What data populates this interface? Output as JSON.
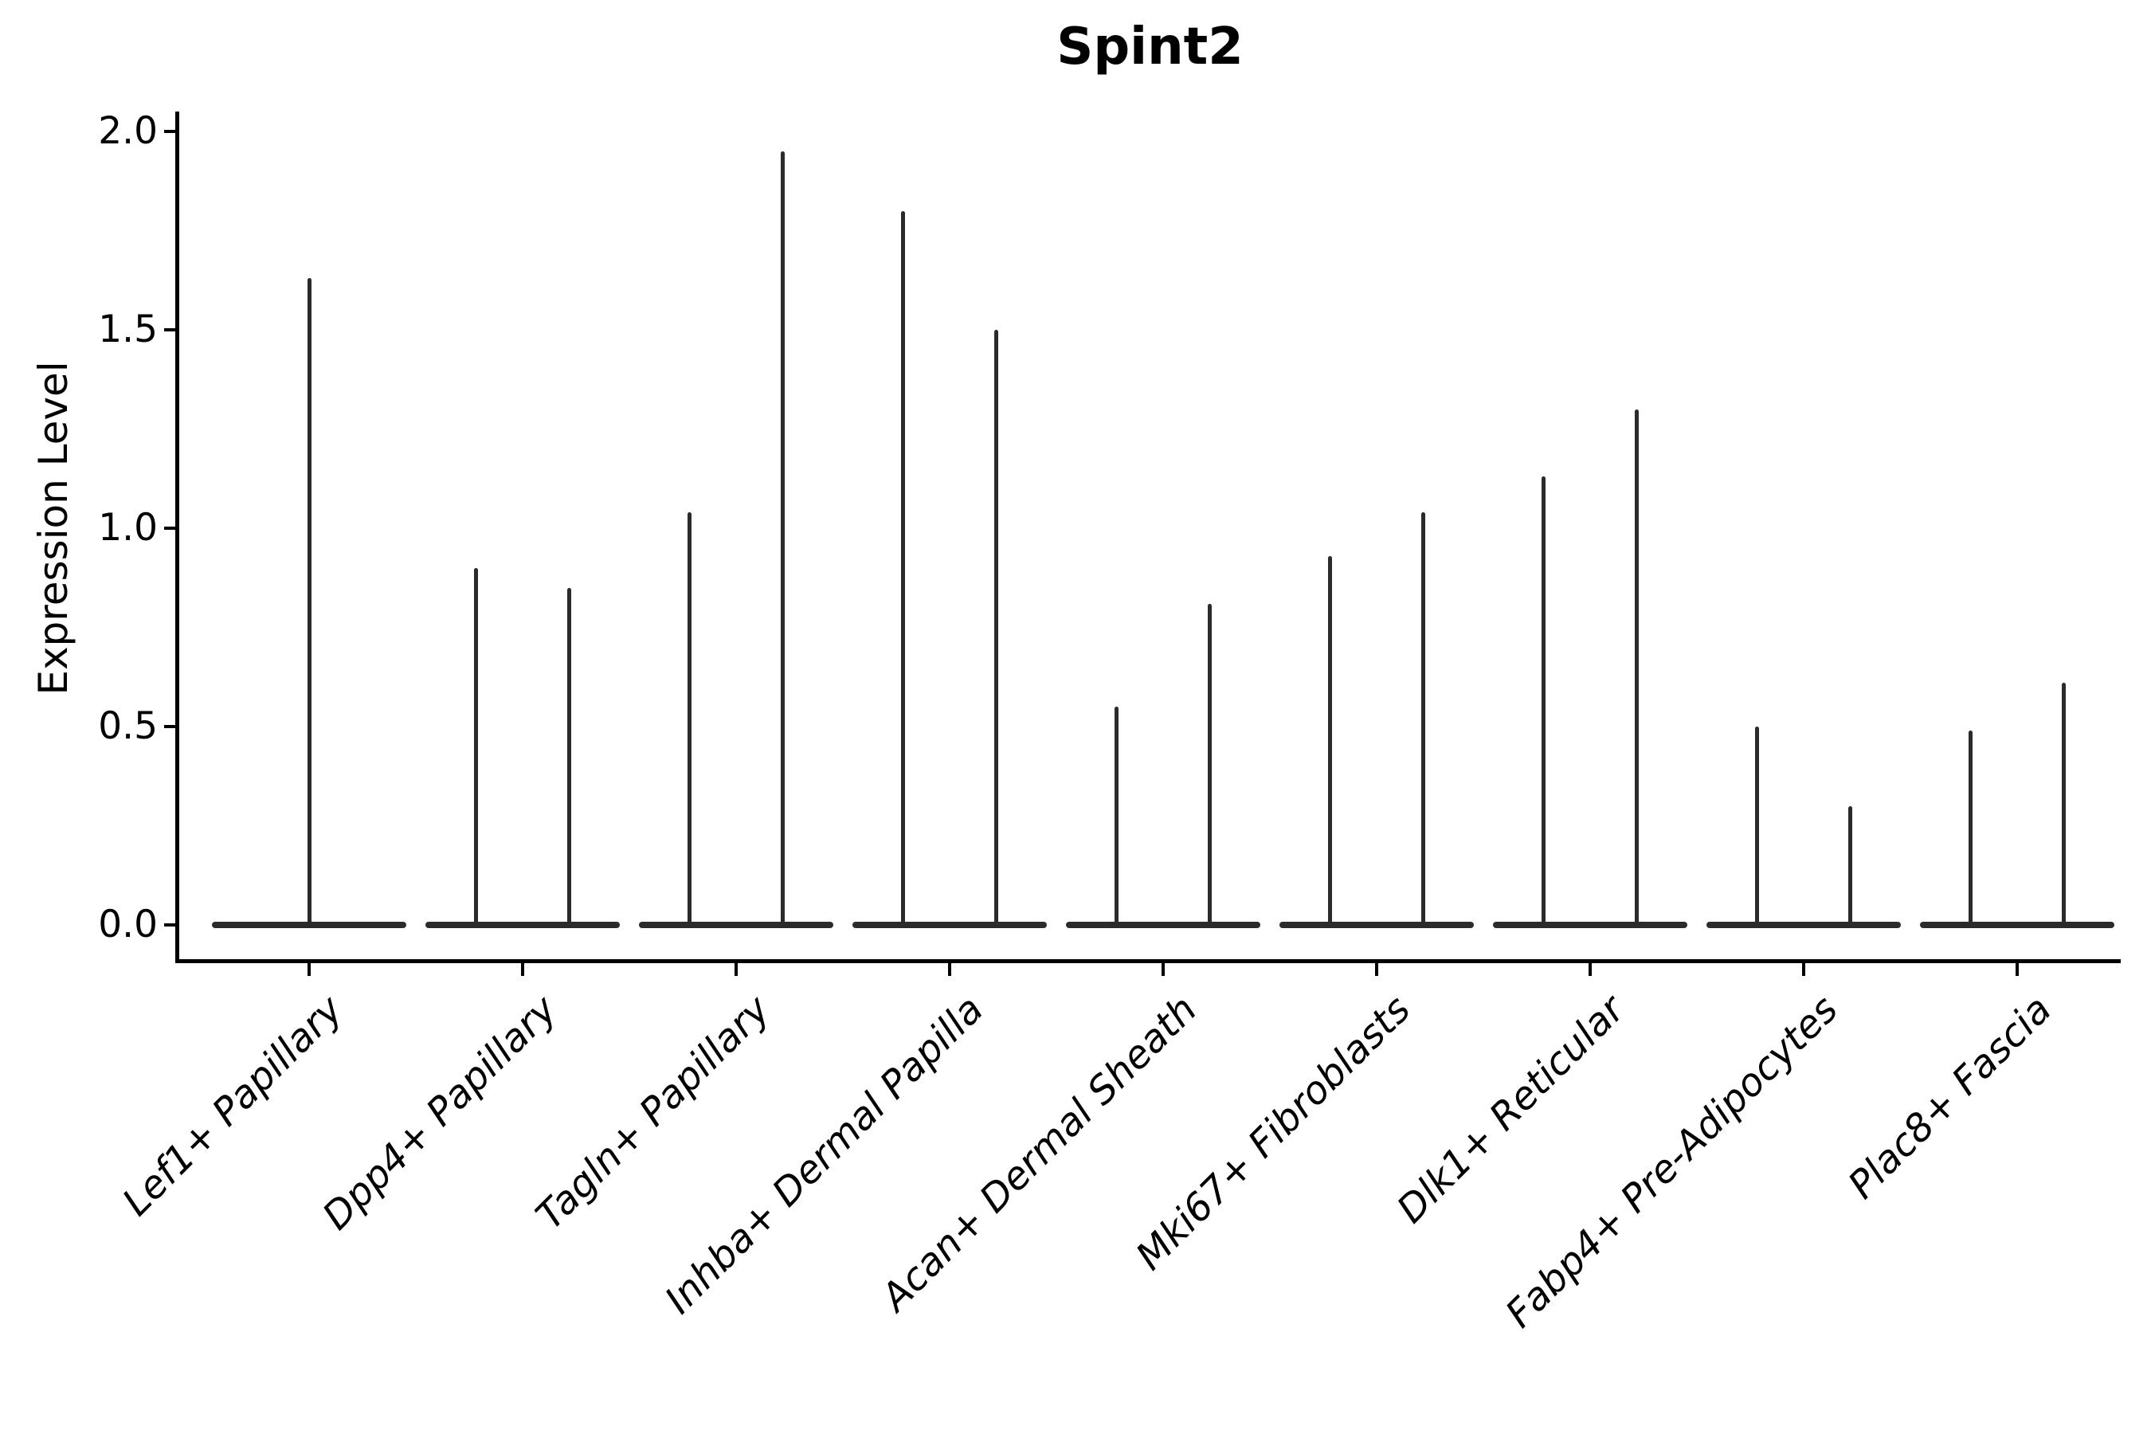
{
  "chart_data": {
    "type": "violin",
    "title": "Spint2",
    "ylabel": "Expression Level",
    "xlabel": "",
    "grid": false,
    "legend": "none",
    "ylim": [
      -0.1,
      2.05
    ],
    "ytick_values": [
      0.0,
      0.5,
      1.0,
      1.5,
      2.0
    ],
    "ytick_labels": [
      "0.0",
      "0.5",
      "1.0",
      "1.5",
      "2.0"
    ],
    "categories": [
      "Lef1+ Papillary",
      "Dpp4+ Papillary",
      "Tagln+ Papillary",
      "Inhba+ Dermal Papilla",
      "Acan+ Dermal Sheath",
      "Mki67+ Fibroblasts",
      "Dlk1+ Reticular",
      "Fabp4+ Pre-Adipocytes",
      "Plac8+ Fascia"
    ],
    "violins": [
      {
        "label": "Lef1+ Papillary",
        "spike_offsets": [
          0.0
        ],
        "spike_maxima": [
          1.63
        ]
      },
      {
        "label": "Dpp4+ Papillary",
        "spike_offsets": [
          -0.22,
          0.22
        ],
        "spike_maxima": [
          0.9,
          0.85
        ]
      },
      {
        "label": "Tagln+ Papillary",
        "spike_offsets": [
          -0.22,
          0.22
        ],
        "spike_maxima": [
          1.04,
          1.95
        ]
      },
      {
        "label": "Inhba+ Dermal Papilla",
        "spike_offsets": [
          -0.22,
          0.22
        ],
        "spike_maxima": [
          1.8,
          1.5
        ]
      },
      {
        "label": "Acan+ Dermal Sheath",
        "spike_offsets": [
          -0.22,
          0.22
        ],
        "spike_maxima": [
          0.55,
          0.81
        ]
      },
      {
        "label": "Mki67+ Fibroblasts",
        "spike_offsets": [
          -0.22,
          0.22
        ],
        "spike_maxima": [
          0.93,
          1.04
        ]
      },
      {
        "label": "Dlk1+ Reticular",
        "spike_offsets": [
          -0.22,
          0.22
        ],
        "spike_maxima": [
          1.13,
          1.3
        ]
      },
      {
        "label": "Fabp4+ Pre-Adipocytes",
        "spike_offsets": [
          -0.22,
          0.22
        ],
        "spike_maxima": [
          0.5,
          0.3
        ]
      },
      {
        "label": "Plac8+ Fascia",
        "spike_offsets": [
          -0.22,
          0.22
        ],
        "spike_maxima": [
          0.49,
          0.61
        ]
      }
    ],
    "baseline_halfwidth_fraction": 0.455,
    "colors": {
      "violin_ink": "#2b2b2b",
      "axis": "#000000",
      "background": "#ffffff",
      "text": "#000000"
    }
  }
}
